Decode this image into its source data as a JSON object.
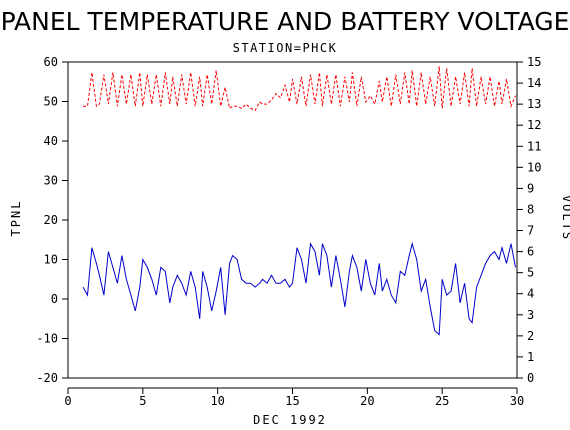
{
  "chart_data": {
    "type": "line",
    "title": "PANEL TEMPERATURE AND BATTERY VOLTAGE",
    "subtitle": "STATION=PHCK",
    "xlabel": "DEC 1992",
    "ylabel_left": "TPNL",
    "ylabel_right": "VOLTS",
    "xlim": [
      0,
      30
    ],
    "ylim_left": [
      -20,
      60
    ],
    "ylim_right": [
      0,
      15
    ],
    "xticks": [
      0,
      5,
      10,
      15,
      20,
      25,
      30
    ],
    "yticks_left": [
      -20,
      -10,
      0,
      10,
      20,
      30,
      40,
      50,
      60
    ],
    "yticks_right": [
      0,
      1,
      2,
      3,
      4,
      5,
      6,
      7,
      8,
      9,
      10,
      11,
      12,
      13,
      14,
      15
    ],
    "series": [
      {
        "axis": "left",
        "color": "#0000cc",
        "dashed": false,
        "x": [
          1.0,
          1.3,
          1.6,
          1.9,
          2.1,
          2.4,
          2.7,
          3.0,
          3.3,
          3.6,
          3.9,
          4.2,
          4.5,
          4.8,
          5.0,
          5.3,
          5.6,
          5.9,
          6.2,
          6.5,
          6.8,
          7.0,
          7.3,
          7.6,
          7.9,
          8.2,
          8.5,
          8.8,
          9.0,
          9.3,
          9.6,
          9.9,
          10.2,
          10.5,
          10.8,
          11.0,
          11.3,
          11.6,
          11.9,
          12.2,
          12.5,
          12.8,
          13.0,
          13.3,
          13.6,
          13.9,
          14.2,
          14.5,
          14.8,
          15.0,
          15.3,
          15.6,
          15.9,
          16.2,
          16.5,
          16.8,
          17.0,
          17.3,
          17.6,
          17.9,
          18.2,
          18.5,
          18.8,
          19.0,
          19.3,
          19.6,
          19.9,
          20.2,
          20.5,
          20.8,
          21.0,
          21.3,
          21.6,
          21.9,
          22.2,
          22.5,
          22.8,
          23.0,
          23.3,
          23.6,
          23.9,
          24.2,
          24.5,
          24.8,
          25.0,
          25.3,
          25.6,
          25.9,
          26.2,
          26.5,
          26.8,
          27.0,
          27.3,
          27.6,
          27.9,
          28.2,
          28.5,
          28.8,
          29.0,
          29.3,
          29.6,
          29.9
        ],
        "values": [
          3,
          1,
          13,
          9,
          6,
          1,
          12,
          8,
          4,
          11,
          5,
          1,
          -3,
          3,
          10,
          8,
          5,
          1,
          8,
          7,
          -1,
          3,
          6,
          4,
          1,
          7,
          3,
          -5,
          7,
          3,
          -3,
          2,
          8,
          -4,
          9,
          11,
          10,
          5,
          4,
          4,
          3,
          4,
          5,
          4,
          6,
          4,
          4,
          5,
          3,
          4,
          13,
          10,
          4,
          14,
          12,
          6,
          14,
          11,
          3,
          11,
          5,
          -2,
          7,
          11,
          8,
          2,
          10,
          4,
          1,
          9,
          2,
          5,
          1,
          -1,
          7,
          6,
          11,
          14,
          10,
          2,
          5,
          -2,
          -8,
          -9,
          5,
          1,
          2,
          9,
          -1,
          4,
          -5,
          -6,
          3,
          6,
          9,
          11,
          12,
          10,
          13,
          9,
          14,
          8
        ]
      },
      {
        "axis": "right",
        "color": "#ff0000",
        "dashed": true,
        "x": [
          1.0,
          1.3,
          1.6,
          1.9,
          2.1,
          2.4,
          2.7,
          3.0,
          3.3,
          3.6,
          3.9,
          4.2,
          4.5,
          4.8,
          5.0,
          5.3,
          5.6,
          5.9,
          6.2,
          6.5,
          6.8,
          7.0,
          7.3,
          7.6,
          7.9,
          8.2,
          8.5,
          8.8,
          9.0,
          9.3,
          9.6,
          9.9,
          10.2,
          10.5,
          10.8,
          11.0,
          11.3,
          11.6,
          11.9,
          12.2,
          12.5,
          12.8,
          13.0,
          13.3,
          13.6,
          13.9,
          14.2,
          14.5,
          14.8,
          15.0,
          15.3,
          15.6,
          15.9,
          16.2,
          16.5,
          16.8,
          17.0,
          17.3,
          17.6,
          17.9,
          18.2,
          18.5,
          18.8,
          19.0,
          19.3,
          19.6,
          19.9,
          20.2,
          20.5,
          20.8,
          21.0,
          21.3,
          21.6,
          21.9,
          22.2,
          22.5,
          22.8,
          23.0,
          23.3,
          23.6,
          23.9,
          24.2,
          24.5,
          24.8,
          25.0,
          25.3,
          25.6,
          25.9,
          26.2,
          26.5,
          26.8,
          27.0,
          27.3,
          27.6,
          27.9,
          28.2,
          28.5,
          28.8,
          29.0,
          29.3,
          29.6,
          29.9
        ],
        "values": [
          12.9,
          12.9,
          14.5,
          12.9,
          13.0,
          14.4,
          13.0,
          14.5,
          12.9,
          14.4,
          13.0,
          14.4,
          12.9,
          14.5,
          12.9,
          14.4,
          13.0,
          14.4,
          12.9,
          14.5,
          13.0,
          14.3,
          12.9,
          14.4,
          13.0,
          14.5,
          12.9,
          14.3,
          12.9,
          14.4,
          13.0,
          14.6,
          12.9,
          13.8,
          12.8,
          12.9,
          12.9,
          12.8,
          13.0,
          12.8,
          12.7,
          13.1,
          13.0,
          13.0,
          13.2,
          13.5,
          13.3,
          13.9,
          13.1,
          14.2,
          13.0,
          14.3,
          12.9,
          14.4,
          13.0,
          14.5,
          12.9,
          14.4,
          13.0,
          14.4,
          12.9,
          14.3,
          13.1,
          14.5,
          12.9,
          14.3,
          13.1,
          13.4,
          13.0,
          14.1,
          13.1,
          14.3,
          12.9,
          14.4,
          13.0,
          14.5,
          13.0,
          14.6,
          12.9,
          14.5,
          13.0,
          14.3,
          12.9,
          14.8,
          12.8,
          14.7,
          12.9,
          14.3,
          13.0,
          14.5,
          12.9,
          14.7,
          12.9,
          14.3,
          13.0,
          14.3,
          12.9,
          14.1,
          13.0,
          14.2,
          12.9,
          13.4
        ]
      }
    ]
  }
}
